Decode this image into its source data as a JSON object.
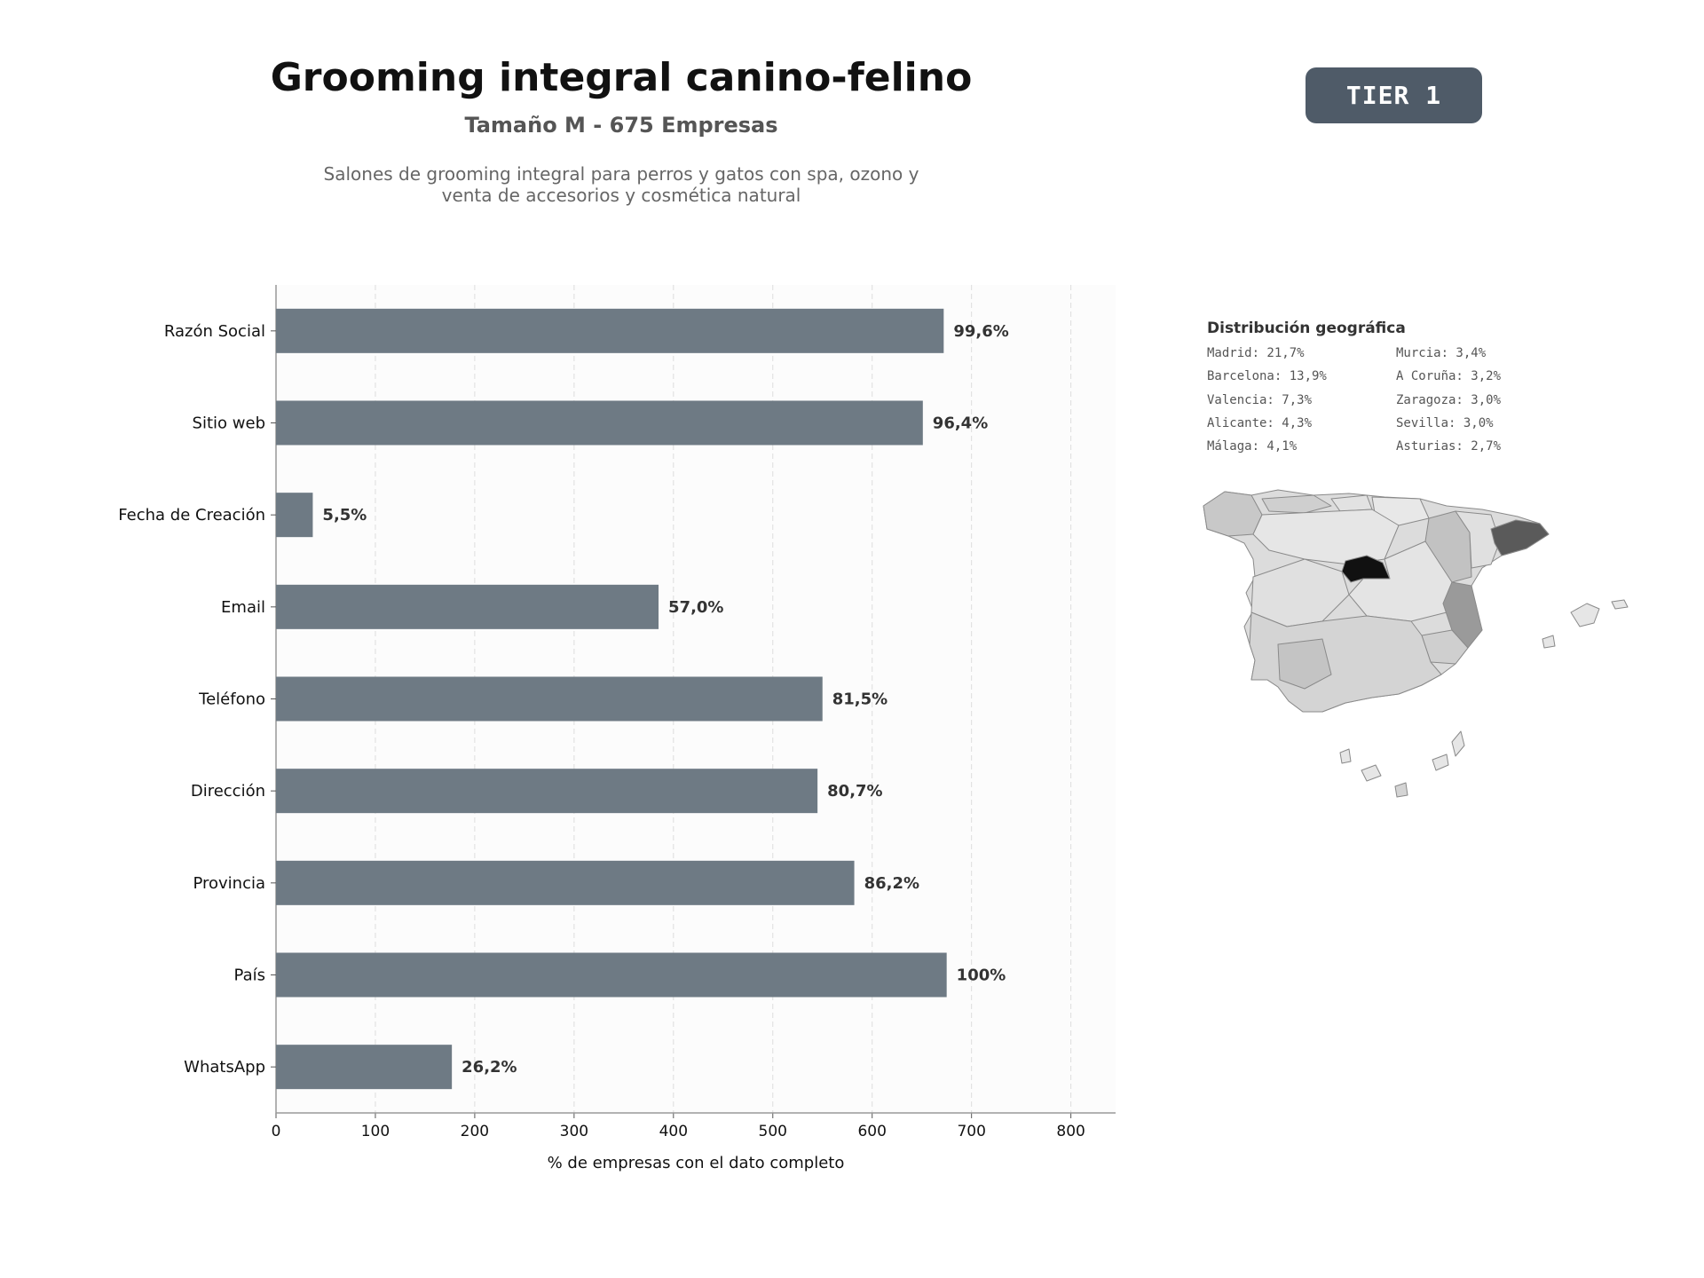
{
  "header": {
    "title": "Grooming integral canino-felino",
    "subtitle": "Tamaño M - 675 Empresas",
    "description_lines": [
      "Salones de grooming integral para perros y gatos con spa, ozono y",
      "venta de accesorios y cosmética natural"
    ],
    "badge": "TIER 1"
  },
  "colors": {
    "bar": "#6e7a84",
    "badge": "#4f5b68",
    "highlight_madrid": "#111111",
    "highlight_barcelona": "#5a5a5a",
    "highlight_valencia": "#9a9a9a"
  },
  "chart_data": {
    "type": "bar",
    "orientation": "horizontal",
    "categories": [
      "Razón Social",
      "Sitio web",
      "Fecha de Creación",
      "Email",
      "Teléfono",
      "Dirección",
      "Provincia",
      "País",
      "WhatsApp"
    ],
    "values": [
      672,
      651,
      37,
      385,
      550,
      545,
      582,
      675,
      177
    ],
    "data_labels": [
      "99,6%",
      "96,4%",
      "5,5%",
      "57,0%",
      "81,5%",
      "80,7%",
      "86,2%",
      "100%",
      "26,2%"
    ],
    "xlabel": "% de empresas con el dato completo",
    "xlim": [
      0,
      845
    ],
    "xticks": [
      0,
      100,
      200,
      300,
      400,
      500,
      600,
      700,
      800
    ],
    "grid": "vertical dashed"
  },
  "geo": {
    "title": "Distribución geográfica",
    "items": [
      "Madrid: 21,7%",
      "Barcelona: 13,9%",
      "Valencia: 7,3%",
      "Alicante: 4,3%",
      "Málaga: 4,1%",
      "Murcia: 3,4%",
      "A Coruña: 3,2%",
      "Zaragoza: 3,0%",
      "Sevilla: 3,0%",
      "Asturias: 2,7%"
    ]
  }
}
